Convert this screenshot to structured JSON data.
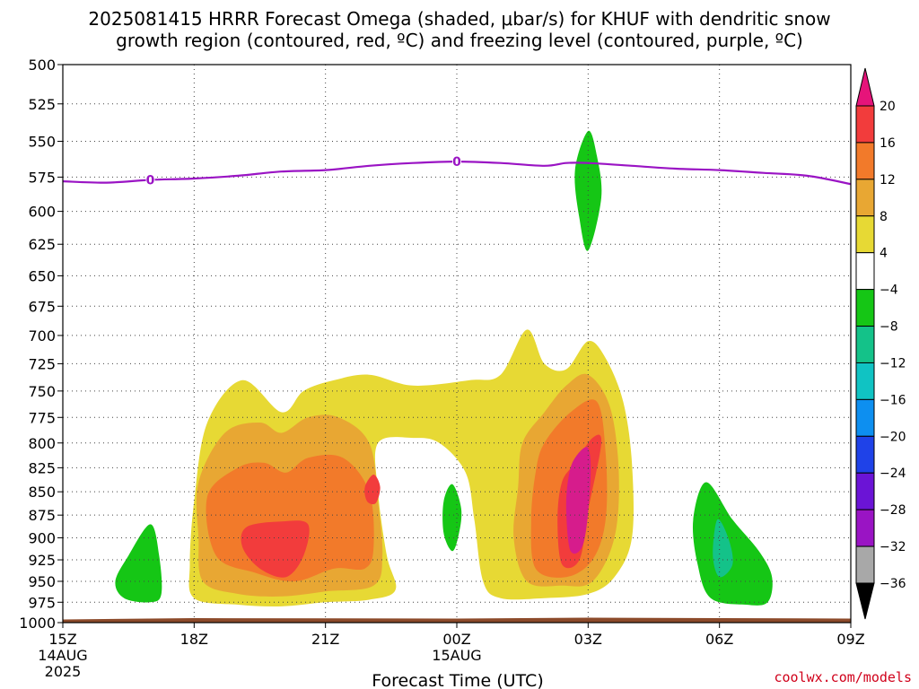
{
  "chart_data": {
    "type": "heatmap",
    "title_line1": "2025081415 HRRR Forecast Omega (shaded, μbar/s) for KHUF with dendritic snow",
    "title_line2": "growth region (contoured, red, ºC) and freezing level (contoured, purple, ºC)",
    "xlabel": "Forecast Time (UTC)",
    "y_axis": {
      "ticks": [
        500,
        525,
        550,
        575,
        600,
        625,
        650,
        675,
        700,
        725,
        750,
        775,
        800,
        825,
        850,
        875,
        900,
        925,
        950,
        975,
        1000
      ],
      "range": [
        500,
        1000
      ],
      "scale": "log-pressure",
      "inverted": true
    },
    "x_axis": {
      "range_hours": [
        0,
        18
      ],
      "ticks": [
        {
          "hour": 0,
          "label": "15Z",
          "sub1": "14AUG",
          "sub2": "2025"
        },
        {
          "hour": 3,
          "label": "18Z",
          "sub1": "",
          "sub2": ""
        },
        {
          "hour": 6,
          "label": "21Z",
          "sub1": "",
          "sub2": ""
        },
        {
          "hour": 9,
          "label": "00Z",
          "sub1": "15AUG",
          "sub2": ""
        },
        {
          "hour": 12,
          "label": "03Z",
          "sub1": "",
          "sub2": ""
        },
        {
          "hour": 15,
          "label": "06Z",
          "sub1": "",
          "sub2": ""
        },
        {
          "hour": 18,
          "label": "09Z",
          "sub1": "",
          "sub2": ""
        }
      ]
    },
    "grid": true,
    "colorbar": {
      "labels": [
        "20",
        "16",
        "12",
        "8",
        "4",
        "−4",
        "−8",
        "−12",
        "−16",
        "−20",
        "−24",
        "−28",
        "−32",
        "−36"
      ],
      "colors": [
        "#d61c8c",
        "#f23c3c",
        "#f27a2a",
        "#e8a733",
        "#e7d934",
        "#ffffff",
        "#15c615",
        "#14c289",
        "#10c3c3",
        "#0d8ff0",
        "#1f42e8",
        "#6b14d6",
        "#9a14c4",
        "#a8a8a8"
      ],
      "top_arrow_color": "#e6147a",
      "bottom_arrow_color": "#000000"
    },
    "freezing_level": {
      "color": "#9a14c4",
      "label": "0",
      "label_hours": [
        2,
        9
      ],
      "points": [
        [
          0,
          578
        ],
        [
          1,
          579
        ],
        [
          2,
          577
        ],
        [
          3,
          576
        ],
        [
          4,
          574
        ],
        [
          5,
          571
        ],
        [
          6,
          570
        ],
        [
          7,
          567
        ],
        [
          8,
          565
        ],
        [
          9,
          564
        ],
        [
          10,
          565
        ],
        [
          11,
          567
        ],
        [
          11.5,
          565
        ],
        [
          12,
          565
        ],
        [
          13,
          567
        ],
        [
          14,
          569
        ],
        [
          15,
          570
        ],
        [
          16,
          572
        ],
        [
          17,
          574
        ],
        [
          18,
          580
        ]
      ]
    },
    "omega_regions": [
      {
        "level": "4",
        "color": "#e7d934",
        "points": [
          [
            3,
            860
          ],
          [
            3.3,
            780
          ],
          [
            4.1,
            740
          ],
          [
            5,
            770
          ],
          [
            5.5,
            750
          ],
          [
            6.2,
            740
          ],
          [
            7,
            735
          ],
          [
            8,
            745
          ],
          [
            9.3,
            740
          ],
          [
            10,
            735
          ],
          [
            10.6,
            695
          ],
          [
            11,
            725
          ],
          [
            11.5,
            730
          ],
          [
            12,
            705
          ],
          [
            12.4,
            720
          ],
          [
            12.8,
            760
          ],
          [
            13,
            820
          ],
          [
            13,
            900
          ],
          [
            12.6,
            945
          ],
          [
            12,
            965
          ],
          [
            11,
            970
          ],
          [
            10,
            970
          ],
          [
            9.6,
            950
          ],
          [
            9.4,
            880
          ],
          [
            9.2,
            830
          ],
          [
            8.6,
            800
          ],
          [
            8,
            795
          ],
          [
            7.2,
            800
          ],
          [
            7.2,
            850
          ],
          [
            7.4,
            920
          ],
          [
            7.6,
            960
          ],
          [
            7,
            972
          ],
          [
            6,
            975
          ],
          [
            5,
            980
          ],
          [
            4,
            978
          ],
          [
            3,
            970
          ],
          [
            2.9,
            930
          ]
        ]
      },
      {
        "level": "8",
        "color": "#e8a733",
        "points": [
          [
            3.1,
            840
          ],
          [
            3.7,
            790
          ],
          [
            4.5,
            780
          ],
          [
            5,
            790
          ],
          [
            5.6,
            775
          ],
          [
            6.3,
            775
          ],
          [
            7,
            800
          ],
          [
            7.2,
            860
          ],
          [
            7.3,
            920
          ],
          [
            7.1,
            955
          ],
          [
            6,
            962
          ],
          [
            5,
            968
          ],
          [
            4,
            965
          ],
          [
            3.2,
            950
          ],
          [
            3.1,
            900
          ]
        ]
      },
      {
        "level": "8",
        "color": "#e8a733",
        "points": [
          [
            10.5,
            800
          ],
          [
            11,
            770
          ],
          [
            11.5,
            745
          ],
          [
            12,
            735
          ],
          [
            12.5,
            765
          ],
          [
            12.7,
            830
          ],
          [
            12.6,
            900
          ],
          [
            12.1,
            950
          ],
          [
            11.4,
            955
          ],
          [
            10.6,
            950
          ],
          [
            10.3,
            900
          ],
          [
            10.4,
            845
          ]
        ]
      },
      {
        "level": "12",
        "color": "#f27a2a",
        "points": [
          [
            3.3,
            855
          ],
          [
            4,
            825
          ],
          [
            4.6,
            820
          ],
          [
            5.1,
            830
          ],
          [
            5.6,
            815
          ],
          [
            6.4,
            815
          ],
          [
            7,
            850
          ],
          [
            7.1,
            910
          ],
          [
            6.9,
            935
          ],
          [
            6.2,
            935
          ],
          [
            5.3,
            950
          ],
          [
            4.4,
            940
          ],
          [
            3.5,
            920
          ]
        ]
      },
      {
        "level": "12",
        "color": "#f27a2a",
        "points": [
          [
            11,
            800
          ],
          [
            11.6,
            770
          ],
          [
            12.2,
            760
          ],
          [
            12.4,
            810
          ],
          [
            12.4,
            880
          ],
          [
            12.1,
            925
          ],
          [
            11.5,
            945
          ],
          [
            10.8,
            935
          ],
          [
            10.7,
            880
          ],
          [
            10.8,
            830
          ]
        ]
      },
      {
        "level": "16",
        "color": "#f23c3c",
        "points": [
          [
            4.2,
            888
          ],
          [
            5,
            882
          ],
          [
            5.6,
            885
          ],
          [
            5.5,
            920
          ],
          [
            5.1,
            945
          ],
          [
            4.5,
            935
          ],
          [
            4.1,
            910
          ]
        ]
      },
      {
        "level": "16",
        "color": "#f23c3c",
        "points": [
          [
            6.9,
            845
          ],
          [
            7.1,
            832
          ],
          [
            7.25,
            845
          ],
          [
            7.15,
            862
          ],
          [
            6.95,
            860
          ]
        ]
      },
      {
        "level": "16",
        "color": "#f23c3c",
        "points": [
          [
            11.7,
            820
          ],
          [
            12.1,
            795
          ],
          [
            12.3,
            800
          ],
          [
            12,
            870
          ],
          [
            11.8,
            925
          ],
          [
            11.4,
            930
          ],
          [
            11.3,
            880
          ],
          [
            11.4,
            840
          ]
        ]
      },
      {
        "level": "20",
        "color": "#d61c8c",
        "points": [
          [
            11.7,
            815
          ],
          [
            12,
            805
          ],
          [
            12.05,
            840
          ],
          [
            11.9,
            905
          ],
          [
            11.6,
            915
          ],
          [
            11.5,
            870
          ],
          [
            11.55,
            835
          ]
        ]
      },
      {
        "level": "-4",
        "color": "#15c615",
        "points": [
          [
            2,
            885
          ],
          [
            2.2,
            920
          ],
          [
            2.25,
            965
          ],
          [
            2,
            975
          ],
          [
            1.4,
            970
          ],
          [
            1.2,
            950
          ],
          [
            1.5,
            920
          ]
        ]
      },
      {
        "level": "-4",
        "color": "#15c615",
        "points": [
          [
            8.9,
            842
          ],
          [
            9.1,
            868
          ],
          [
            9.05,
            895
          ],
          [
            8.9,
            915
          ],
          [
            8.7,
            895
          ],
          [
            8.7,
            860
          ]
        ]
      },
      {
        "level": "-4",
        "color": "#15c615",
        "points": [
          [
            12,
            543
          ],
          [
            12.2,
            560
          ],
          [
            12.3,
            590
          ],
          [
            12,
            630
          ],
          [
            11.8,
            605
          ],
          [
            11.7,
            570
          ]
        ]
      },
      {
        "level": "-4",
        "color": "#15c615",
        "points": [
          [
            14.7,
            840
          ],
          [
            15.3,
            880
          ],
          [
            15.9,
            915
          ],
          [
            16.2,
            945
          ],
          [
            16.1,
            975
          ],
          [
            15.6,
            978
          ],
          [
            14.8,
            970
          ],
          [
            14.5,
            930
          ],
          [
            14.4,
            880
          ]
        ]
      },
      {
        "level": "-8",
        "color": "#14c289",
        "points": [
          [
            14.95,
            880
          ],
          [
            15.2,
            900
          ],
          [
            15.3,
            930
          ],
          [
            15,
            945
          ],
          [
            14.85,
            920
          ]
        ]
      }
    ],
    "surface_band": {
      "color": "#8c4a2a",
      "pressure_top": 995
    }
  },
  "credit": "coolwx.com/models"
}
